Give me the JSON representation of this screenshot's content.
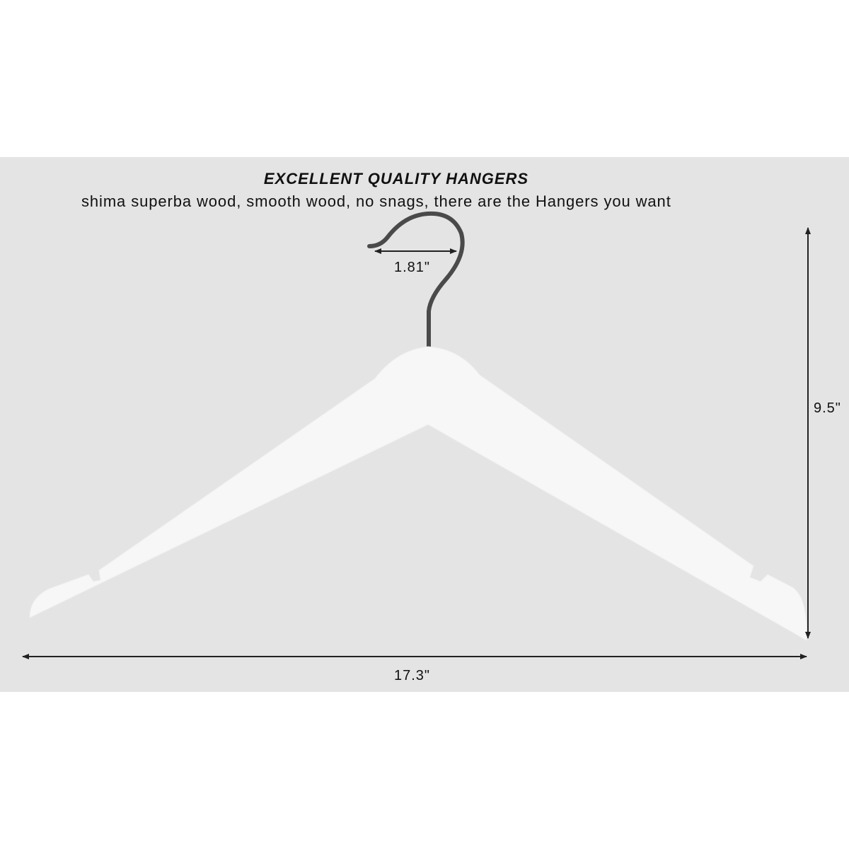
{
  "heading": "EXCELLENT QUALITY HANGERS",
  "subheading": "shima superba wood, smooth wood, no snags, there are the Hangers you want",
  "dimensions": {
    "hook_width": "1.81\"",
    "height": "9.5\"",
    "width": "17.3\""
  },
  "colors": {
    "background_band": "#e4e4e4",
    "hanger": "#f7f7f7",
    "hook": "#555555",
    "arrows": "#222222"
  }
}
